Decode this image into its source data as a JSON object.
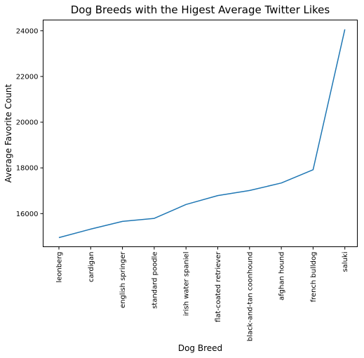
{
  "chart_data": {
    "type": "line",
    "title": "Dog Breeds with the Higest Average Twitter Likes",
    "xlabel": "Dog Breed",
    "ylabel": "Average Favorite Count",
    "categories": [
      "leonberg",
      "cardigan",
      "english springer",
      "standard poodle",
      "irish water spaniel",
      "flat-coated retriever",
      "black-and-tan coonhound",
      "afghan hound",
      "french bulldog",
      "saluki"
    ],
    "series": [
      {
        "values": [
          14950,
          15320,
          15660,
          15790,
          16400,
          16790,
          17010,
          17340,
          17920,
          24060
        ]
      }
    ],
    "yticks": [
      16000,
      18000,
      20000,
      22000,
      24000
    ],
    "ylim": [
      14550,
      24470
    ],
    "grid": false,
    "line_color": "#1f77b4"
  }
}
